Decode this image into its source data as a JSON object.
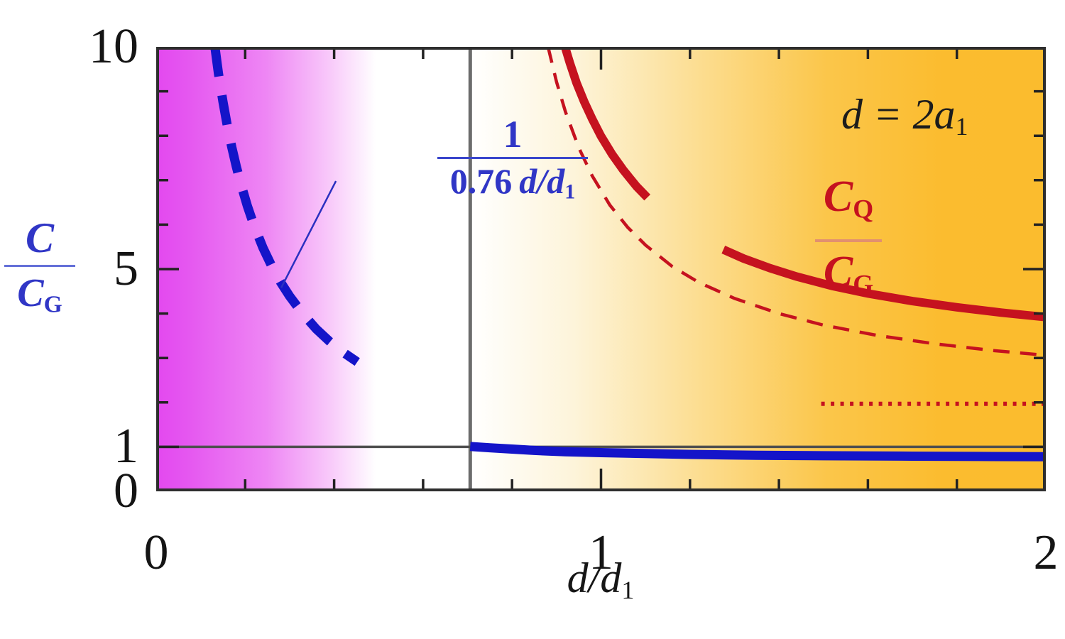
{
  "labels": {
    "y_axis": {
      "num": "C",
      "den": "C",
      "den_sub": "G"
    },
    "x_axis": {
      "main": "d/d",
      "sub": "1"
    },
    "condition": {
      "main": "d = 2a",
      "sub": "1"
    },
    "inverse_law": {
      "num": "1",
      "den_coeff": "0.76 ",
      "den_var": "d/d",
      "den_sub": "1"
    },
    "cq_ratio": {
      "num": "C",
      "num_sub": "Q",
      "den": "C",
      "den_sub": "G"
    }
  },
  "chart_data": {
    "type": "line",
    "title": "",
    "xlabel": "d/d1",
    "ylabel": "C/C_G",
    "xlim": [
      0,
      2
    ],
    "ylim": [
      0,
      10
    ],
    "grid": false,
    "colors": {
      "magenta_region": "#e348ef",
      "orange_region": "#fbbc2e",
      "blue": "#1414c9",
      "red": "#c5121f",
      "frame": "#2e2e2e",
      "tick": "#222222",
      "gray_vertical": "#6b6b6b",
      "gray_horizontal": "#4f4f4f",
      "leader": "#2a30c0"
    },
    "regions": [
      {
        "name": "magenta-gradient",
        "x_range": [
          0,
          0.5
        ]
      },
      {
        "name": "orange-gradient",
        "x_range": [
          0.71,
          2
        ]
      }
    ],
    "reference_lines": [
      {
        "axis": "x",
        "value": 0.706,
        "color": "#6b6b6b",
        "width": 5
      },
      {
        "axis": "y",
        "value": 1.0,
        "color": "#4f4f4f",
        "width": 3.5
      }
    ],
    "series": [
      {
        "name": "inverse-law-dashed-blue",
        "label": "1/(0.76 d/d1)",
        "color": "#1414c9",
        "width": 13,
        "dash": "42 27",
        "points": [
          [
            0.132,
            10
          ],
          [
            0.14,
            9.4
          ],
          [
            0.15,
            8.77
          ],
          [
            0.16,
            8.22
          ],
          [
            0.17,
            7.74
          ],
          [
            0.18,
            7.31
          ],
          [
            0.19,
            6.93
          ],
          [
            0.205,
            6.42
          ],
          [
            0.22,
            5.98
          ],
          [
            0.24,
            5.48
          ],
          [
            0.26,
            5.06
          ],
          [
            0.28,
            4.7
          ],
          [
            0.3,
            4.39
          ],
          [
            0.33,
            3.99
          ],
          [
            0.36,
            3.65
          ],
          [
            0.39,
            3.37
          ],
          [
            0.42,
            3.13
          ],
          [
            0.452,
            2.91
          ]
        ]
      },
      {
        "name": "cq-over-cg-solid-red",
        "label": "C_Q/C_G",
        "color": "#c5121f",
        "width": 12,
        "dash": null,
        "segments": [
          [
            [
              0.919,
              10
            ],
            [
              0.93,
              9.64
            ],
            [
              0.945,
              9.19
            ],
            [
              0.962,
              8.77
            ],
            [
              0.98,
              8.38
            ],
            [
              1.0,
              7.99
            ],
            [
              1.025,
              7.58
            ],
            [
              1.05,
              7.23
            ],
            [
              1.08,
              6.86
            ],
            [
              1.104,
              6.61
            ]
          ],
          [
            [
              1.275,
              5.44
            ],
            [
              1.32,
              5.24
            ],
            [
              1.38,
              5.02
            ],
            [
              1.44,
              4.83
            ],
            [
              1.52,
              4.62
            ],
            [
              1.6,
              4.45
            ],
            [
              1.7,
              4.28
            ],
            [
              1.8,
              4.14
            ],
            [
              1.9,
              4.02
            ],
            [
              2.0,
              3.92
            ]
          ]
        ]
      },
      {
        "name": "cq-over-cg-thin-dashed-red",
        "label": "",
        "color": "#c5121f",
        "width": 4.5,
        "dash": "23 15",
        "points": [
          [
            0.881,
            10
          ],
          [
            0.9,
            9.21
          ],
          [
            0.92,
            8.54
          ],
          [
            0.95,
            7.73
          ],
          [
            0.98,
            7.1
          ],
          [
            1.02,
            6.44
          ],
          [
            1.06,
            5.94
          ],
          [
            1.1,
            5.54
          ],
          [
            1.16,
            5.06
          ],
          [
            1.22,
            4.7
          ],
          [
            1.3,
            4.34
          ],
          [
            1.4,
            4.0
          ],
          [
            1.5,
            3.74
          ],
          [
            1.62,
            3.51
          ],
          [
            1.75,
            3.32
          ],
          [
            1.88,
            3.17
          ],
          [
            2.0,
            3.06
          ]
        ]
      },
      {
        "name": "asymptote-dotted-red",
        "label": "",
        "color": "#c5121f",
        "width": 6,
        "dash": "5 8.5",
        "points": [
          [
            1.495,
            1.97
          ],
          [
            2.0,
            1.97
          ]
        ]
      },
      {
        "name": "c-over-cg-solid-blue",
        "label": "",
        "color": "#1414c9",
        "width": 13,
        "dash": null,
        "points": [
          [
            0.706,
            1.01
          ],
          [
            0.75,
            0.98
          ],
          [
            0.8,
            0.95
          ],
          [
            0.85,
            0.92
          ],
          [
            0.92,
            0.89
          ],
          [
            1.0,
            0.87
          ],
          [
            1.1,
            0.85
          ],
          [
            1.2,
            0.83
          ],
          [
            1.35,
            0.81
          ],
          [
            1.5,
            0.8
          ],
          [
            1.7,
            0.79
          ],
          [
            1.85,
            0.785
          ],
          [
            2.0,
            0.78
          ]
        ]
      }
    ],
    "leader_line": {
      "from": [
        0.404,
        6.98
      ],
      "to": [
        0.281,
        4.58
      ],
      "color": "#2a30c0",
      "width": 2.5
    },
    "ticks": {
      "color": "#222222",
      "width": 3.5,
      "x": {
        "major": [
          0,
          1,
          2
        ],
        "minor": [
          0.2,
          0.4,
          0.6,
          0.8,
          1.2,
          1.4,
          1.6,
          1.8
        ],
        "major_len": 32,
        "minor_len": 17
      },
      "y": {
        "major": [
          0,
          1,
          5,
          10
        ],
        "minor": [
          2,
          3,
          4,
          6,
          7,
          8,
          9
        ],
        "major_len": 32,
        "minor_len": 17
      }
    },
    "tick_labels": {
      "x": [
        {
          "value": 0,
          "label": "0"
        },
        {
          "value": 1,
          "label": "1"
        },
        {
          "value": 2,
          "label": "2"
        }
      ],
      "y": [
        {
          "value": 0,
          "label": "0"
        },
        {
          "value": 1,
          "label": "1"
        },
        {
          "value": 5,
          "label": "5"
        },
        {
          "value": 10,
          "label": "10"
        }
      ]
    }
  }
}
